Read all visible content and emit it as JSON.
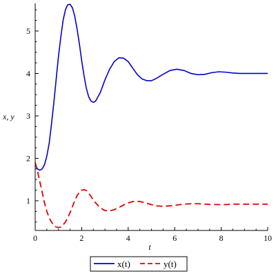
{
  "chart_data": {
    "type": "line",
    "xlabel": "t",
    "ylabel": "x, y",
    "xlim": [
      0,
      10
    ],
    "ylim": [
      0.3,
      5.65
    ],
    "x_ticks": [
      0,
      2,
      4,
      6,
      8,
      10
    ],
    "y_ticks": [
      1,
      2,
      3,
      4,
      5
    ],
    "grid": false,
    "legend_position": "bottom-center",
    "series": [
      {
        "name": "x(t)",
        "color": "#0000cc",
        "dash": "solid",
        "x": [
          0,
          0.1,
          0.2,
          0.3,
          0.4,
          0.5,
          0.6,
          0.7,
          0.8,
          0.9,
          1.0,
          1.1,
          1.2,
          1.3,
          1.4,
          1.5,
          1.6,
          1.7,
          1.8,
          1.9,
          2.0,
          2.1,
          2.2,
          2.3,
          2.4,
          2.5,
          2.6,
          2.7,
          2.8,
          2.9,
          3.0,
          3.2,
          3.4,
          3.6,
          3.8,
          4.0,
          4.2,
          4.4,
          4.6,
          4.8,
          5.0,
          5.2,
          5.5,
          5.8,
          6.1,
          6.4,
          6.7,
          7.0,
          7.3,
          7.6,
          7.9,
          8.2,
          8.5,
          8.8,
          9.1,
          9.4,
          9.7,
          10.0
        ],
        "values": [
          1.85,
          1.75,
          1.72,
          1.75,
          1.85,
          2.05,
          2.35,
          2.8,
          3.3,
          3.85,
          4.4,
          4.85,
          5.25,
          5.5,
          5.62,
          5.63,
          5.55,
          5.35,
          5.05,
          4.7,
          4.3,
          3.95,
          3.65,
          3.45,
          3.35,
          3.32,
          3.35,
          3.45,
          3.55,
          3.7,
          3.85,
          4.1,
          4.28,
          4.37,
          4.36,
          4.28,
          4.12,
          3.97,
          3.87,
          3.83,
          3.83,
          3.88,
          3.98,
          4.07,
          4.1,
          4.07,
          4.0,
          3.97,
          3.98,
          4.02,
          4.04,
          4.03,
          4.01,
          4.0,
          4.0,
          4.0,
          4.0,
          4.0
        ]
      },
      {
        "name": "y(t)",
        "color": "#e00000",
        "dash": "dashed",
        "x": [
          0,
          0.1,
          0.2,
          0.3,
          0.4,
          0.5,
          0.6,
          0.7,
          0.8,
          0.9,
          1.0,
          1.1,
          1.2,
          1.3,
          1.4,
          1.5,
          1.6,
          1.7,
          1.8,
          1.9,
          2.0,
          2.1,
          2.2,
          2.3,
          2.4,
          2.5,
          2.6,
          2.7,
          2.8,
          3.0,
          3.2,
          3.4,
          3.6,
          3.8,
          4.0,
          4.2,
          4.4,
          4.6,
          4.8,
          5.0,
          5.2,
          5.5,
          5.8,
          6.1,
          6.4,
          6.7,
          7.0,
          7.3,
          7.6,
          7.9,
          8.2,
          8.5,
          8.8,
          9.1,
          9.4,
          9.7,
          10.0
        ],
        "values": [
          1.9,
          1.7,
          1.45,
          1.2,
          0.95,
          0.75,
          0.6,
          0.5,
          0.42,
          0.38,
          0.37,
          0.38,
          0.43,
          0.5,
          0.6,
          0.72,
          0.86,
          1.0,
          1.12,
          1.2,
          1.25,
          1.26,
          1.24,
          1.18,
          1.1,
          1.02,
          0.95,
          0.89,
          0.83,
          0.77,
          0.76,
          0.79,
          0.84,
          0.9,
          0.95,
          0.98,
          0.99,
          0.97,
          0.94,
          0.91,
          0.88,
          0.87,
          0.88,
          0.9,
          0.92,
          0.93,
          0.93,
          0.92,
          0.91,
          0.91,
          0.91,
          0.92,
          0.92,
          0.92,
          0.92,
          0.92,
          0.92
        ]
      }
    ]
  }
}
